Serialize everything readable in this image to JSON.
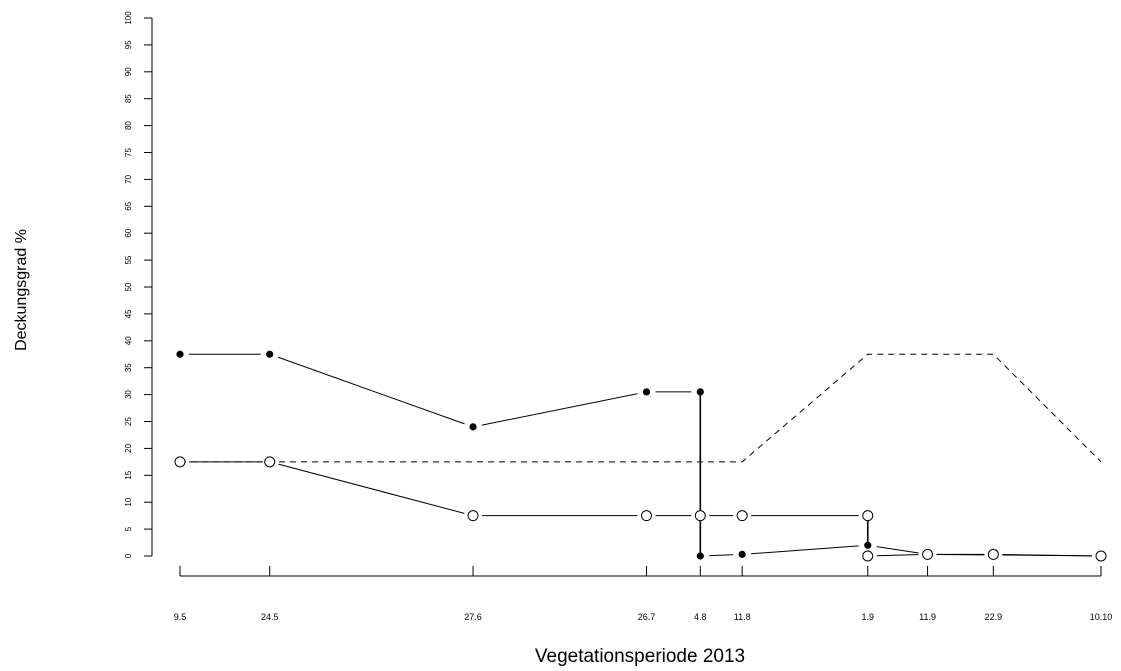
{
  "chart_data": {
    "type": "line",
    "xlabel": "Vegetationsperiode 2013",
    "ylabel": "Deckungsgrad %",
    "ylim": [
      0,
      100
    ],
    "yticks": [
      0,
      5,
      10,
      15,
      20,
      25,
      30,
      35,
      40,
      45,
      50,
      55,
      60,
      65,
      70,
      75,
      80,
      85,
      90,
      95,
      100
    ],
    "x": [
      "2013-05-09",
      "2013-05-24",
      "2013-06-27",
      "2013-07-26",
      "2013-08-04",
      "2013-08-11",
      "2013-09-01",
      "2013-09-11",
      "2013-09-22",
      "2013-10-10"
    ],
    "xtick_labels": [
      "9.5",
      "24.5",
      "27.6",
      "26.7",
      "4.8",
      "11.8",
      "1.9",
      "11.9",
      "22.9",
      "10.10"
    ],
    "grid": false,
    "legend": "none",
    "series": [
      {
        "style": "solid line, filled circles",
        "segments": [
          [
            {
              "x": "2013-05-09",
              "y": 37.5
            },
            {
              "x": "2013-05-24",
              "y": 37.5
            },
            {
              "x": "2013-06-27",
              "y": 24
            },
            {
              "x": "2013-07-26",
              "y": 30.5
            },
            {
              "x": "2013-08-04",
              "y": 30.5
            }
          ],
          [
            {
              "x": "2013-08-04",
              "y": 0
            },
            {
              "x": "2013-08-11",
              "y": 0.3
            },
            {
              "x": "2013-09-01",
              "y": 2
            },
            {
              "x": "2013-09-11",
              "y": 0.3
            },
            {
              "x": "2013-09-22",
              "y": 0.2
            },
            {
              "x": "2013-10-10",
              "y": 0
            }
          ]
        ]
      },
      {
        "style": "solid line, open circles",
        "segments": [
          [
            {
              "x": "2013-05-09",
              "y": 17.5
            },
            {
              "x": "2013-05-24",
              "y": 17.5
            },
            {
              "x": "2013-06-27",
              "y": 7.5
            },
            {
              "x": "2013-07-26",
              "y": 7.5
            },
            {
              "x": "2013-08-04",
              "y": 7.5
            },
            {
              "x": "2013-08-11",
              "y": 7.5
            },
            {
              "x": "2013-09-01",
              "y": 7.5
            }
          ],
          [
            {
              "x": "2013-09-01",
              "y": 0
            },
            {
              "x": "2013-09-11",
              "y": 0.3
            },
            {
              "x": "2013-09-22",
              "y": 0.3
            },
            {
              "x": "2013-10-10",
              "y": 0
            }
          ]
        ]
      },
      {
        "style": "dashed line, no markers",
        "segments": [
          [
            {
              "x": "2013-05-09",
              "y": 17.5
            },
            {
              "x": "2013-08-11",
              "y": 17.5
            },
            {
              "x": "2013-09-01",
              "y": 37.5
            },
            {
              "x": "2013-09-22",
              "y": 37.5
            },
            {
              "x": "2013-10-10",
              "y": 17.5
            }
          ]
        ]
      }
    ],
    "connectors": [
      {
        "x": "2013-08-04",
        "y_from": 30.5,
        "y_to": 0
      },
      {
        "x": "2013-09-01",
        "y_from": 2,
        "y_to": 7.5
      }
    ]
  }
}
